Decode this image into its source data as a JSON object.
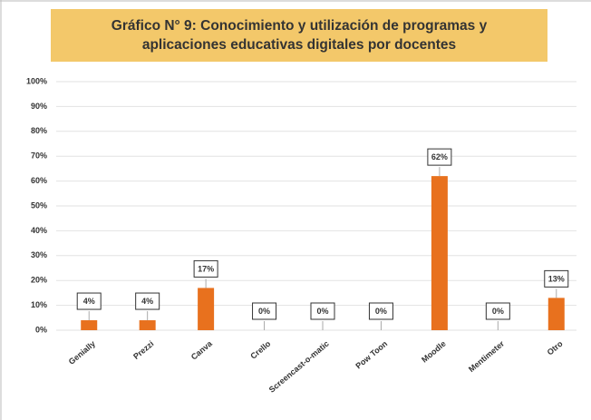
{
  "chart_data": {
    "type": "bar",
    "title": "Gráfico N° 9: Conocimiento y utilización de programas y aplicaciones educativas digitales por docentes",
    "categories": [
      "Genially",
      "Prezzi",
      "Canva",
      "Crello",
      "Screencast-o-matic",
      "Pow Toon",
      "Moodle",
      "Mentimeter",
      "Otro"
    ],
    "values": [
      4,
      4,
      17,
      0,
      0,
      0,
      62,
      0,
      13
    ],
    "value_labels": [
      "4%",
      "4%",
      "17%",
      "0%",
      "0%",
      "0%",
      "62%",
      "0%",
      "13%"
    ],
    "color": "#e8711e",
    "ylim": [
      0,
      100
    ],
    "yticks": [
      {
        "value": 0,
        "label": "0%"
      },
      {
        "value": 10,
        "label": "10%"
      },
      {
        "value": 20,
        "label": "20%"
      },
      {
        "value": 30,
        "label": "30%"
      },
      {
        "value": 40,
        "label": "40%"
      },
      {
        "value": 50,
        "label": "50%"
      },
      {
        "value": 60,
        "label": "60%"
      },
      {
        "value": 70,
        "label": "70%"
      },
      {
        "value": 80,
        "label": "80%"
      },
      {
        "value": 90,
        "label": "90%"
      },
      {
        "value": 100,
        "label": "100%"
      }
    ],
    "grid": true
  }
}
